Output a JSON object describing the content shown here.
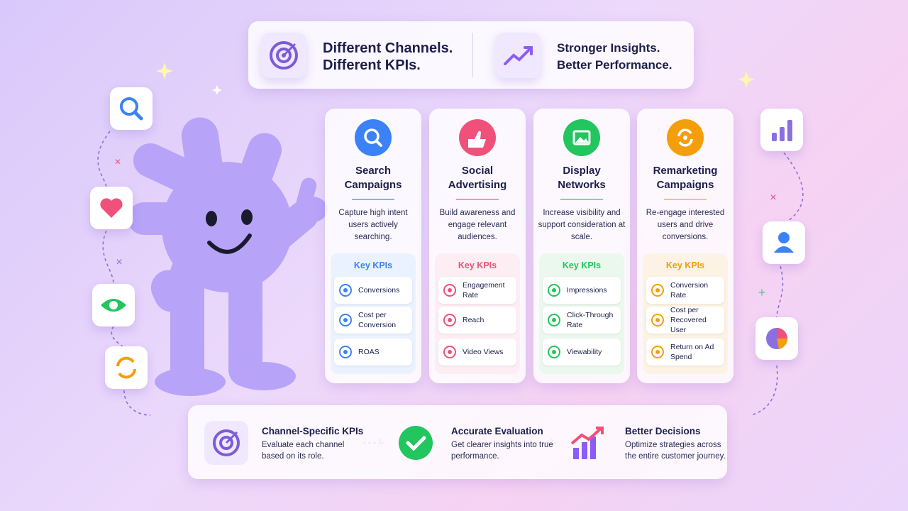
{
  "header": {
    "left_lines": [
      "Different Channels.",
      "Different KPIs."
    ],
    "right_lines": [
      "Stronger Insights.",
      "Better Performance."
    ]
  },
  "channels": [
    {
      "title_lines": [
        "Search",
        "Campaigns"
      ],
      "description": "Capture high intent users actively searching.",
      "kpi_heading": "Key KPIs",
      "kpis": [
        "Conversions",
        "Cost per Conversion",
        "ROAS"
      ]
    },
    {
      "title_lines": [
        "Social",
        "Advertising"
      ],
      "description": "Build awareness and engage relevant audiences.",
      "kpi_heading": "Key KPIs",
      "kpis": [
        "Engagement Rate",
        "Reach",
        "Video Views"
      ]
    },
    {
      "title_lines": [
        "Display",
        "Networks"
      ],
      "description": "Increase visibility and support consideration at scale.",
      "kpi_heading": "Key KPIs",
      "kpis": [
        "Impressions",
        "Click-Through Rate",
        "Viewability"
      ]
    },
    {
      "title_lines": [
        "Remarketing",
        "Campaigns"
      ],
      "description": "Re-engage interested users and drive conversions.",
      "kpi_heading": "Key KPIs",
      "kpis": [
        "Conversion Rate",
        "Cost per Recovered User",
        "Return on Ad Spend"
      ]
    }
  ],
  "footer": {
    "steps": [
      {
        "title": "Channel-Specific KPIs",
        "description": "Evaluate each channel based on its role."
      },
      {
        "title": "Accurate Evaluation",
        "description": "Get clearer insights into true performance."
      },
      {
        "title": "Better Decisions",
        "description": "Optimize strategies across the entire customer journey."
      }
    ]
  }
}
